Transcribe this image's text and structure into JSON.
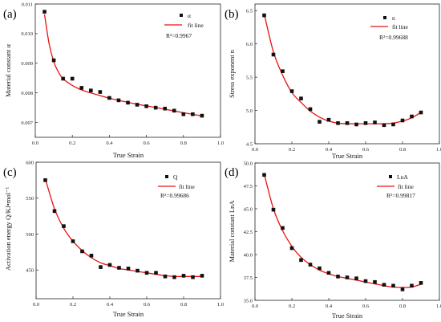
{
  "colors": {
    "fit_line": "#e8140f",
    "marker": "#111111",
    "axis": "#222222"
  },
  "chart_data": [
    {
      "type": "scatter",
      "panel_label": "(a)",
      "xlabel": "True Strain",
      "ylabel": "Material constant α",
      "xlim": [
        0.0,
        1.0
      ],
      "ylim": [
        0.0065,
        0.011
      ],
      "xticks": [
        "0.0",
        "0.2",
        "0.4",
        "0.6",
        "0.8",
        "1.0"
      ],
      "yticks": [
        "0.007",
        "0.008",
        "0.009",
        "0.010",
        "0.011"
      ],
      "ytick_values": [
        0.007,
        0.008,
        0.009,
        0.01,
        0.011
      ],
      "legend": {
        "marker_label": "α",
        "line_label": "fit line",
        "r2": "R²=0.9967",
        "placement": "top-right"
      },
      "series": [
        {
          "name": "α",
          "kind": "markers",
          "x": [
            0.05,
            0.1,
            0.15,
            0.2,
            0.25,
            0.3,
            0.35,
            0.4,
            0.45,
            0.5,
            0.55,
            0.6,
            0.65,
            0.7,
            0.75,
            0.8,
            0.85,
            0.9
          ],
          "y": [
            0.01074,
            0.0091,
            0.00848,
            0.00848,
            0.00817,
            0.00808,
            0.00803,
            0.00783,
            0.00775,
            0.00767,
            0.0076,
            0.00755,
            0.0075,
            0.00747,
            0.0074,
            0.00728,
            0.00728,
            0.00723
          ]
        },
        {
          "name": "fit line",
          "kind": "line",
          "x": [
            0.05,
            0.075,
            0.1,
            0.125,
            0.15,
            0.2,
            0.25,
            0.3,
            0.4,
            0.5,
            0.6,
            0.7,
            0.8,
            0.9
          ],
          "y": [
            0.01065,
            0.00965,
            0.00905,
            0.0087,
            0.00848,
            0.00825,
            0.0081,
            0.008,
            0.00782,
            0.00768,
            0.00756,
            0.00745,
            0.00733,
            0.00722
          ]
        }
      ]
    },
    {
      "type": "scatter",
      "panel_label": "(b)",
      "xlabel": "True Strain",
      "ylabel": "Stress exponent n",
      "xlim": [
        0.0,
        1.0
      ],
      "ylim": [
        4.5,
        6.6
      ],
      "xticks": [
        "0.0",
        "0.2",
        "0.4",
        "0.6",
        "0.8",
        "1.0"
      ],
      "yticks": [
        "4.5",
        "5.0",
        "5.5",
        "6.0",
        "6.5"
      ],
      "ytick_values": [
        4.5,
        5.0,
        5.5,
        6.0,
        6.5
      ],
      "legend": {
        "marker_label": "n",
        "line_label": "fit line",
        "r2": "R²=0.99688",
        "placement": "top-right"
      },
      "series": [
        {
          "name": "n",
          "kind": "markers",
          "x": [
            0.05,
            0.1,
            0.15,
            0.2,
            0.25,
            0.3,
            0.35,
            0.4,
            0.45,
            0.5,
            0.55,
            0.6,
            0.65,
            0.7,
            0.75,
            0.8,
            0.85,
            0.9
          ],
          "y": [
            6.43,
            5.84,
            5.59,
            5.29,
            5.18,
            5.02,
            4.83,
            4.86,
            4.81,
            4.81,
            4.79,
            4.81,
            4.82,
            4.78,
            4.79,
            4.85,
            4.91,
            4.97
          ]
        },
        {
          "name": "fit line",
          "kind": "line",
          "x": [
            0.05,
            0.1,
            0.15,
            0.2,
            0.25,
            0.3,
            0.35,
            0.4,
            0.45,
            0.5,
            0.55,
            0.6,
            0.65,
            0.7,
            0.75,
            0.8,
            0.85,
            0.9
          ],
          "y": [
            6.45,
            5.88,
            5.53,
            5.27,
            5.12,
            4.99,
            4.9,
            4.84,
            4.81,
            4.8,
            4.8,
            4.8,
            4.8,
            4.8,
            4.81,
            4.84,
            4.89,
            4.97
          ]
        }
      ]
    },
    {
      "type": "scatter",
      "panel_label": "(c)",
      "xlabel": "True Strain",
      "ylabel": "Activation energy Q/KJ•mol⁻¹",
      "xlim": [
        0.0,
        1.0
      ],
      "ylim": [
        410,
        600
      ],
      "xticks": [
        "0.0",
        "0.2",
        "0.4",
        "0.6",
        "0.8",
        "1.0"
      ],
      "yticks": [
        "450",
        "500",
        "550",
        "600"
      ],
      "ytick_values": [
        450,
        500,
        550,
        600
      ],
      "legend": {
        "marker_label": "Q",
        "line_label": "fit line",
        "r2": "R²=0.99686",
        "placement": "top-right"
      },
      "series": [
        {
          "name": "Q",
          "kind": "markers",
          "x": [
            0.05,
            0.1,
            0.15,
            0.2,
            0.25,
            0.3,
            0.35,
            0.4,
            0.45,
            0.5,
            0.55,
            0.6,
            0.65,
            0.7,
            0.75,
            0.8,
            0.85,
            0.9
          ],
          "y": [
            575,
            532,
            511,
            490,
            476,
            470,
            454,
            457,
            453,
            452,
            449,
            446,
            446,
            441,
            440,
            442,
            440,
            442
          ]
        },
        {
          "name": "fit line",
          "kind": "line",
          "x": [
            0.05,
            0.1,
            0.15,
            0.2,
            0.25,
            0.3,
            0.35,
            0.4,
            0.45,
            0.5,
            0.55,
            0.6,
            0.65,
            0.7,
            0.75,
            0.8,
            0.85,
            0.9
          ],
          "y": [
            577,
            535,
            508,
            490,
            477,
            467,
            460,
            456,
            452,
            450,
            448,
            446,
            444,
            442,
            441,
            441,
            441,
            441
          ]
        }
      ]
    },
    {
      "type": "scatter",
      "panel_label": "(d)",
      "xlabel": "True Strain",
      "ylabel": "Material constant LnA",
      "xlim": [
        0.0,
        1.0
      ],
      "ylim": [
        35.0,
        50.0
      ],
      "xticks": [
        "0.0",
        "0.2",
        "0.4",
        "0.6",
        "0.8",
        "1.0"
      ],
      "yticks": [
        "35.0",
        "37.5",
        "40.0",
        "42.5",
        "45.0",
        "47.5",
        "50.0"
      ],
      "ytick_values": [
        35.0,
        37.5,
        40.0,
        42.5,
        45.0,
        47.5,
        50.0
      ],
      "legend": {
        "marker_label": "LnA",
        "line_label": "fit line",
        "r2": "R²=0.99817",
        "placement": "top-right"
      },
      "series": [
        {
          "name": "LnA",
          "kind": "markers",
          "x": [
            0.05,
            0.1,
            0.15,
            0.2,
            0.25,
            0.3,
            0.35,
            0.4,
            0.45,
            0.5,
            0.55,
            0.6,
            0.65,
            0.7,
            0.75,
            0.8,
            0.85,
            0.9
          ],
          "y": [
            48.7,
            44.9,
            42.9,
            40.7,
            39.4,
            38.9,
            38.5,
            38.0,
            37.6,
            37.5,
            37.4,
            37.1,
            37.0,
            36.7,
            36.6,
            36.2,
            36.6,
            36.9
          ]
        },
        {
          "name": "fit line",
          "kind": "line",
          "x": [
            0.05,
            0.1,
            0.15,
            0.2,
            0.25,
            0.3,
            0.35,
            0.4,
            0.45,
            0.5,
            0.55,
            0.6,
            0.65,
            0.7,
            0.75,
            0.8,
            0.85,
            0.9
          ],
          "y": [
            48.8,
            45.0,
            42.6,
            40.9,
            39.7,
            38.9,
            38.3,
            37.9,
            37.6,
            37.4,
            37.2,
            37.0,
            36.8,
            36.6,
            36.45,
            36.4,
            36.45,
            36.75
          ]
        }
      ]
    }
  ]
}
